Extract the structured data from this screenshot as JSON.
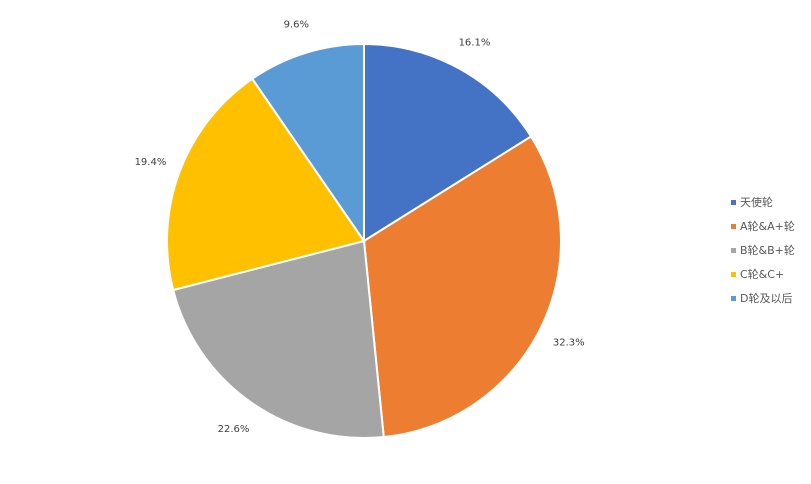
{
  "chart_data": {
    "type": "pie",
    "start_angle": "top, clockwise",
    "slices": [
      {
        "name": "天使轮",
        "value": 16.1,
        "label": "16.1%",
        "color": "#4472C4"
      },
      {
        "name": "A轮&A+轮",
        "value": 32.3,
        "label": "32.3%",
        "color": "#ED7D31"
      },
      {
        "name": "B轮&B+轮",
        "value": 22.6,
        "label": "22.6%",
        "color": "#A5A5A5"
      },
      {
        "name": "C轮&C+",
        "value": 19.4,
        "label": "19.4%",
        "color": "#FFC000"
      },
      {
        "name": "D轮及以后",
        "value": 9.6,
        "label": "9.6%",
        "color": "#5B9BD5"
      }
    ],
    "legend": "right"
  }
}
